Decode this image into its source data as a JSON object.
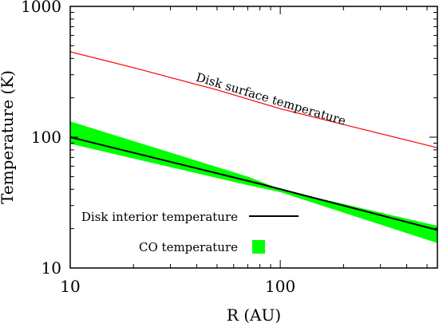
{
  "chart_data": {
    "type": "line",
    "x_scale": "log",
    "y_scale": "log",
    "xlim": [
      10,
      560
    ],
    "ylim": [
      10,
      1000
    ],
    "xlabel": "R (AU)",
    "ylabel": "Temperature (K)",
    "x_ticks": [
      {
        "value": 10,
        "label": "10"
      },
      {
        "value": 100,
        "label": "100"
      }
    ],
    "y_ticks": [
      {
        "value": 10,
        "label": "10"
      },
      {
        "value": 100,
        "label": "100"
      },
      {
        "value": 1000,
        "label": "1000"
      }
    ],
    "grid": false,
    "series": [
      {
        "name": "Disk surface temperature",
        "kind": "line",
        "color": "#ff0000",
        "points": [
          [
            10,
            450
          ],
          [
            20,
            340
          ],
          [
            50,
            230
          ],
          [
            100,
            165
          ],
          [
            200,
            125
          ],
          [
            400,
            95
          ],
          [
            560,
            83
          ]
        ]
      },
      {
        "name": "Disk interior temperature",
        "kind": "line",
        "color": "#000000",
        "points": [
          [
            10,
            100
          ],
          [
            80,
            44
          ],
          [
            560,
            19.5
          ]
        ]
      },
      {
        "name": "CO temperature",
        "kind": "band",
        "color": "#00ff00",
        "upper": [
          [
            10,
            132
          ],
          [
            70,
            50
          ],
          [
            100,
            40
          ],
          [
            560,
            21
          ]
        ],
        "lower": [
          [
            10,
            89
          ],
          [
            70,
            43
          ],
          [
            100,
            38
          ],
          [
            560,
            15.5
          ]
        ]
      }
    ],
    "annotations": [
      {
        "text": "Disk surface temperature",
        "target_series": "Disk surface temperature"
      }
    ],
    "legend": {
      "placement": "bottom-left",
      "entries": [
        {
          "label": "Disk interior temperature",
          "series": "Disk interior temperature"
        },
        {
          "label": "CO temperature",
          "series": "CO temperature"
        }
      ]
    }
  }
}
